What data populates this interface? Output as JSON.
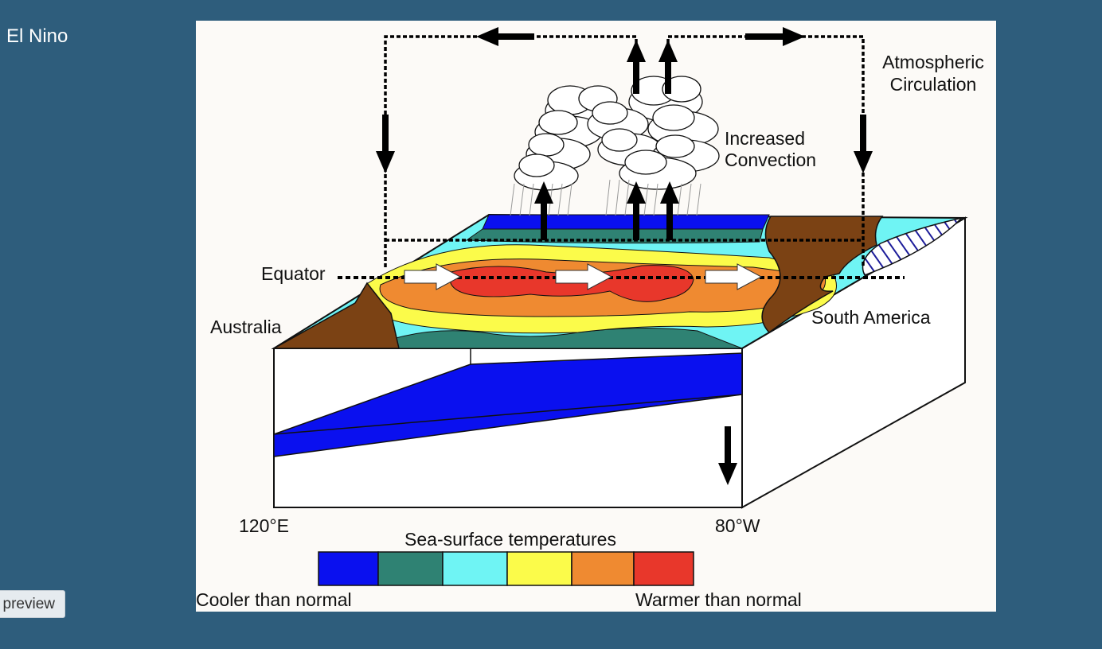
{
  "page": {
    "title": "El Nino",
    "preview_button": "preview"
  },
  "diagram": {
    "labels": {
      "atmo_line1": "Atmospheric",
      "atmo_line2": "Circulation",
      "conv_line1": "Increased",
      "conv_line2": "Convection",
      "equator": "Equator",
      "australia": "Australia",
      "south_america": "South America",
      "lon_west": "120°E",
      "lon_east": "80°W",
      "legend_title": "Sea-surface temperatures",
      "legend_low": "Cooler than normal",
      "legend_high": "Warmer than normal"
    },
    "legend_colors": [
      "#0a10ef",
      "#2f8273",
      "#6ff4f4",
      "#fbfb4a",
      "#ef8a31",
      "#e8372b"
    ],
    "colors": {
      "land": "#7b4214",
      "deep_blue": "#0a10ef",
      "figure_bg": "#fcfaf7",
      "page_bg": "#2e5d7c"
    }
  }
}
